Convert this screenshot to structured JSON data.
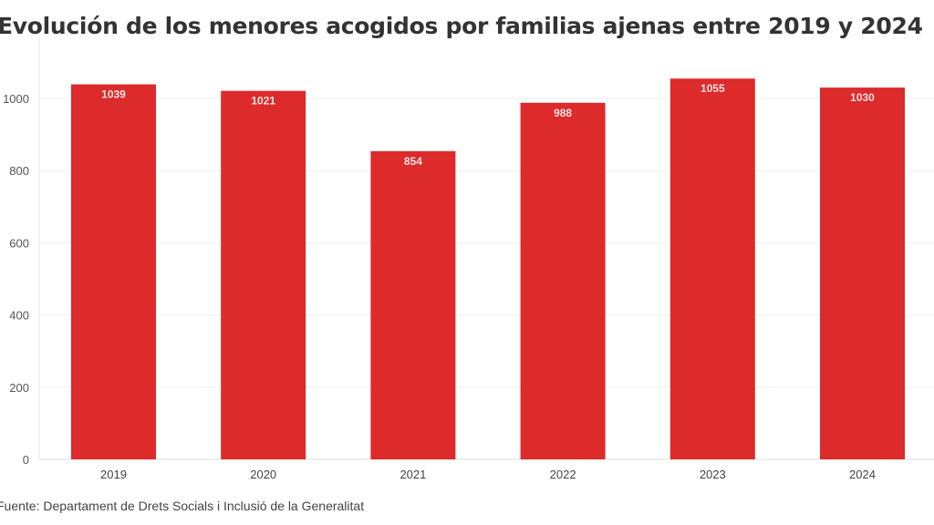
{
  "chart_data": {
    "type": "bar",
    "title": "Evolución de los menores acogidos por familias ajenas entre 2019 y 2024",
    "categories": [
      "2019",
      "2020",
      "2021",
      "2022",
      "2023",
      "2024"
    ],
    "values": [
      1039,
      1021,
      854,
      988,
      1055,
      1030
    ],
    "ylim": [
      0,
      1100
    ],
    "yticks": [
      0,
      200,
      400,
      600,
      800,
      1000
    ],
    "xlabel": "",
    "ylabel": "",
    "grid": true,
    "bar_color": "#dd2a2a",
    "source": "Fuente: Departament de Drets Socials i Inclusió de la Generalitat"
  }
}
